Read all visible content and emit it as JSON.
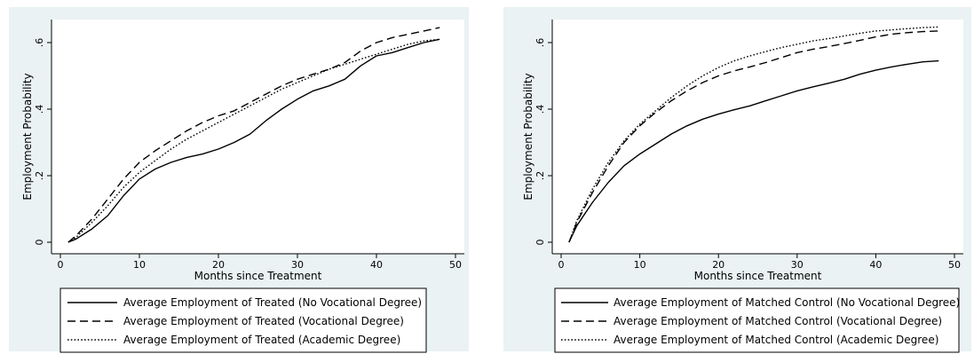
{
  "chart_data": [
    {
      "type": "line",
      "xlabel": "Months since Treatment",
      "ylabel": "Employment Probability",
      "xlim": [
        0,
        50
      ],
      "ylim": [
        0,
        0.6
      ],
      "x_ticks": [
        0,
        10,
        20,
        30,
        40,
        50
      ],
      "x_tick_labels": [
        "0",
        "10",
        "20",
        "30",
        "40",
        "50"
      ],
      "y_ticks": [
        0,
        0.2,
        0.4,
        0.6
      ],
      "y_tick_labels": [
        "0",
        ".2",
        ".4",
        ".6"
      ],
      "grid": false,
      "legend_position": "bottom",
      "x": [
        1,
        2,
        4,
        6,
        8,
        10,
        12,
        14,
        16,
        18,
        20,
        22,
        24,
        26,
        28,
        30,
        32,
        34,
        36,
        38,
        40,
        42,
        44,
        46,
        48
      ],
      "series": [
        {
          "name": "Average Employment of Treated (No Vocational Degree)",
          "style": "solid",
          "values": [
            0.0,
            0.01,
            0.04,
            0.08,
            0.14,
            0.19,
            0.22,
            0.24,
            0.255,
            0.265,
            0.28,
            0.3,
            0.325,
            0.365,
            0.4,
            0.43,
            0.455,
            0.47,
            0.49,
            0.53,
            0.56,
            0.57,
            0.585,
            0.6,
            0.61
          ]
        },
        {
          "name": "Average Employment of Treated (Vocational Degree)",
          "style": "dashed",
          "values": [
            0.0,
            0.02,
            0.07,
            0.13,
            0.19,
            0.24,
            0.275,
            0.305,
            0.335,
            0.36,
            0.38,
            0.395,
            0.42,
            0.445,
            0.47,
            0.49,
            0.505,
            0.52,
            0.54,
            0.575,
            0.6,
            0.615,
            0.625,
            0.635,
            0.645
          ]
        },
        {
          "name": "Average Employment of Treated (Academic Degree)",
          "style": "dotted",
          "values": [
            0.0,
            0.015,
            0.06,
            0.11,
            0.165,
            0.21,
            0.245,
            0.28,
            0.31,
            0.335,
            0.36,
            0.385,
            0.41,
            0.435,
            0.46,
            0.48,
            0.5,
            0.52,
            0.535,
            0.55,
            0.565,
            0.58,
            0.595,
            0.605,
            0.61
          ]
        }
      ]
    },
    {
      "type": "line",
      "xlabel": "Months since Treatment",
      "ylabel": "Employment Probability",
      "xlim": [
        0,
        50
      ],
      "ylim": [
        0,
        0.6
      ],
      "x_ticks": [
        0,
        10,
        20,
        30,
        40,
        50
      ],
      "x_tick_labels": [
        "0",
        "10",
        "20",
        "30",
        "40",
        "50"
      ],
      "y_ticks": [
        0,
        0.2,
        0.4,
        0.6
      ],
      "y_tick_labels": [
        "0",
        ".2",
        ".4",
        ".6"
      ],
      "grid": false,
      "legend_position": "bottom",
      "x": [
        1,
        2,
        4,
        6,
        8,
        10,
        12,
        14,
        16,
        18,
        20,
        22,
        24,
        26,
        28,
        30,
        32,
        34,
        36,
        38,
        40,
        42,
        44,
        46,
        48
      ],
      "series": [
        {
          "name": "Average Employment of Matched Control (No Vocational Degree)",
          "style": "solid",
          "values": [
            0.0,
            0.05,
            0.12,
            0.18,
            0.23,
            0.265,
            0.295,
            0.325,
            0.35,
            0.37,
            0.385,
            0.398,
            0.41,
            0.425,
            0.44,
            0.455,
            0.467,
            0.478,
            0.49,
            0.505,
            0.517,
            0.527,
            0.535,
            0.542,
            0.545
          ]
        },
        {
          "name": "Average Employment of Matched Control (Vocational Degree)",
          "style": "dashed",
          "values": [
            0.0,
            0.06,
            0.15,
            0.23,
            0.3,
            0.35,
            0.39,
            0.425,
            0.455,
            0.48,
            0.5,
            0.515,
            0.527,
            0.54,
            0.555,
            0.57,
            0.58,
            0.588,
            0.597,
            0.607,
            0.617,
            0.625,
            0.63,
            0.633,
            0.635
          ]
        },
        {
          "name": "Average Employment of Matched Control (Academic Degree)",
          "style": "dotted",
          "values": [
            0.0,
            0.065,
            0.16,
            0.24,
            0.305,
            0.355,
            0.395,
            0.435,
            0.47,
            0.5,
            0.525,
            0.545,
            0.56,
            0.573,
            0.585,
            0.595,
            0.605,
            0.612,
            0.62,
            0.628,
            0.635,
            0.638,
            0.642,
            0.645,
            0.647
          ]
        }
      ]
    }
  ]
}
